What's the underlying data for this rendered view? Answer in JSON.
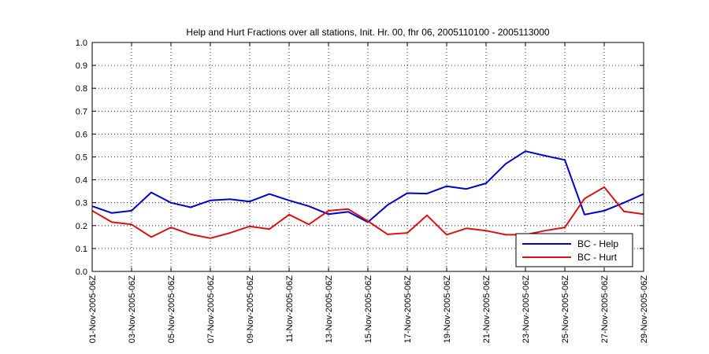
{
  "chart_data": {
    "type": "line",
    "title": "Help and Hurt Fractions over all stations, Init. Hr. 00, fhr 06, 2005110100 - 2005113000",
    "xlabel": "",
    "ylabel": "",
    "ylim": [
      0,
      1
    ],
    "yticks": [
      "0.0",
      "0.1",
      "0.2",
      "0.3",
      "0.4",
      "0.5",
      "0.6",
      "0.7",
      "0.8",
      "0.9",
      "1.0"
    ],
    "x": [
      1,
      2,
      3,
      4,
      5,
      6,
      7,
      8,
      9,
      10,
      11,
      12,
      13,
      14,
      15,
      16,
      17,
      18,
      19,
      20,
      21,
      22,
      23,
      24,
      25,
      26,
      27,
      28,
      29
    ],
    "xlim": [
      1,
      29
    ],
    "xticks": [
      1,
      3,
      5,
      7,
      9,
      11,
      13,
      15,
      17,
      19,
      21,
      23,
      25,
      27,
      29
    ],
    "xtick_labels": [
      "01-Nov-2005-06Z",
      "03-Nov-2005-06Z",
      "05-Nov-2005-06Z",
      "07-Nov-2005-06Z",
      "09-Nov-2005-06Z",
      "11-Nov-2005-06Z",
      "13-Nov-2005-06Z",
      "15-Nov-2005-06Z",
      "17-Nov-2005-06Z",
      "19-Nov-2005-06Z",
      "21-Nov-2005-06Z",
      "23-Nov-2005-06Z",
      "25-Nov-2005-06Z",
      "27-Nov-2005-06Z",
      "29-Nov-2005-06Z"
    ],
    "grid": true,
    "legend_position": "bottom-right",
    "series": [
      {
        "name": "BC - Help",
        "color": "#0000cc",
        "values": [
          0.285,
          0.255,
          0.265,
          0.345,
          0.3,
          0.28,
          0.31,
          0.315,
          0.305,
          0.338,
          0.31,
          0.285,
          0.25,
          0.26,
          0.215,
          0.29,
          0.342,
          0.34,
          0.372,
          0.36,
          0.385,
          0.47,
          0.525,
          0.505,
          0.487,
          0.248,
          0.265,
          0.3,
          0.338
        ]
      },
      {
        "name": "BC - Hurt",
        "color": "#dd1111",
        "values": [
          0.265,
          0.215,
          0.205,
          0.15,
          0.192,
          0.162,
          0.145,
          0.168,
          0.197,
          0.185,
          0.248,
          0.205,
          0.265,
          0.272,
          0.22,
          0.162,
          0.168,
          0.245,
          0.16,
          0.188,
          0.178,
          0.16,
          0.16,
          0.178,
          0.192,
          0.318,
          0.368,
          0.262,
          0.25
        ]
      }
    ]
  }
}
